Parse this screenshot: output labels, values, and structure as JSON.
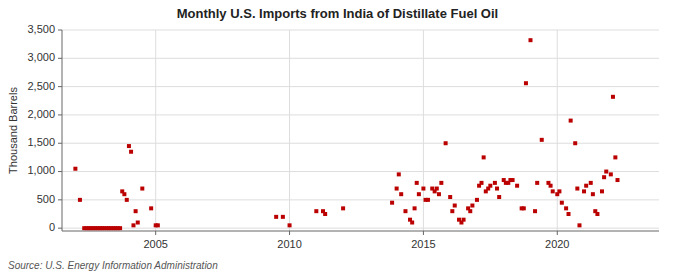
{
  "chart_data": {
    "type": "scatter",
    "title": "Monthly U.S. Imports from India of Distillate Fuel Oil",
    "y_label": "Thousand Barrels",
    "source": "Source: U.S. Energy Information Administration",
    "color": "#bb0000",
    "marker": "square",
    "grid": true,
    "xlim": [
      2001.5,
      2023.8
    ],
    "xticks": [
      2005,
      2010,
      2015,
      2020
    ],
    "ylim": [
      -50,
      3500
    ],
    "yticks": [
      0,
      500,
      {
        "value": 1000,
        "label": "1,000"
      },
      {
        "value": 1500,
        "label": "1,500"
      },
      {
        "value": 2000,
        "label": "2,000"
      },
      {
        "value": 2500,
        "label": "2,500"
      },
      {
        "value": 3000,
        "label": "3,000"
      },
      {
        "value": 3500,
        "label": "3,500"
      }
    ],
    "x": [
      2002.0,
      2002.17,
      2002.33,
      2002.42,
      2002.5,
      2002.58,
      2002.67,
      2002.75,
      2002.83,
      2002.92,
      2003.0,
      2003.08,
      2003.17,
      2003.25,
      2003.33,
      2003.42,
      2003.5,
      2003.58,
      2003.67,
      2003.75,
      2003.83,
      2003.92,
      2004.0,
      2004.08,
      2004.17,
      2004.25,
      2004.33,
      2004.5,
      2004.83,
      2005.0,
      2005.08,
      2009.5,
      2009.75,
      2010.0,
      2011.0,
      2011.25,
      2011.33,
      2012.0,
      2013.83,
      2014.0,
      2014.08,
      2014.17,
      2014.33,
      2014.5,
      2014.58,
      2014.67,
      2014.75,
      2014.83,
      2015.0,
      2015.08,
      2015.17,
      2015.33,
      2015.42,
      2015.5,
      2015.58,
      2015.67,
      2015.83,
      2016.0,
      2016.08,
      2016.17,
      2016.33,
      2016.42,
      2016.5,
      2016.67,
      2016.75,
      2016.83,
      2017.0,
      2017.08,
      2017.17,
      2017.25,
      2017.33,
      2017.42,
      2017.5,
      2017.67,
      2017.75,
      2017.83,
      2018.0,
      2018.08,
      2018.17,
      2018.25,
      2018.33,
      2018.5,
      2018.67,
      2018.75,
      2018.83,
      2019.0,
      2019.17,
      2019.25,
      2019.42,
      2019.67,
      2019.75,
      2019.83,
      2020.0,
      2020.08,
      2020.17,
      2020.33,
      2020.42,
      2020.5,
      2020.67,
      2020.75,
      2020.83,
      2021.0,
      2021.08,
      2021.25,
      2021.33,
      2021.42,
      2021.5,
      2021.67,
      2021.75,
      2021.83,
      2022.0,
      2022.08,
      2022.17,
      2022.25
    ],
    "values": [
      1050,
      500,
      0,
      0,
      0,
      0,
      0,
      0,
      0,
      0,
      0,
      0,
      0,
      0,
      0,
      0,
      0,
      0,
      0,
      650,
      600,
      500,
      1450,
      1350,
      50,
      300,
      100,
      700,
      350,
      50,
      50,
      200,
      200,
      50,
      300,
      300,
      250,
      350,
      450,
      700,
      950,
      600,
      300,
      150,
      100,
      350,
      800,
      600,
      700,
      500,
      500,
      700,
      650,
      700,
      600,
      800,
      1500,
      550,
      300,
      400,
      150,
      100,
      150,
      350,
      300,
      400,
      500,
      750,
      800,
      1250,
      650,
      700,
      750,
      800,
      700,
      550,
      850,
      800,
      800,
      850,
      850,
      750,
      350,
      350,
      2560,
      3320,
      300,
      800,
      1560,
      800,
      750,
      650,
      600,
      650,
      450,
      350,
      250,
      1900,
      1500,
      700,
      50,
      650,
      750,
      800,
      600,
      300,
      250,
      650,
      900,
      1000,
      950,
      2320,
      1250,
      850
    ]
  }
}
